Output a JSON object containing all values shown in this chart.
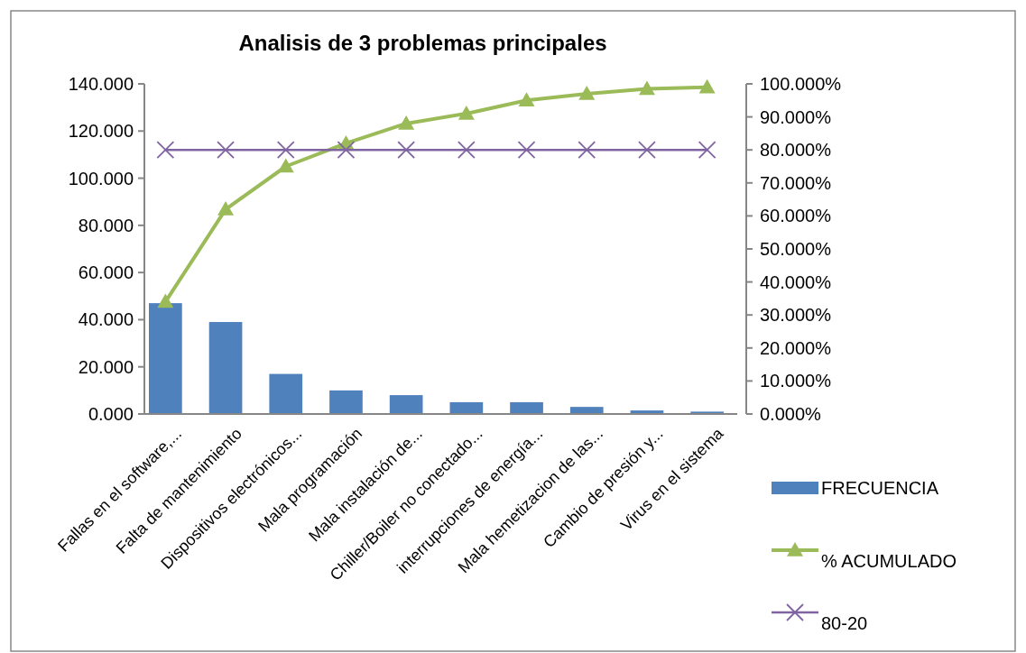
{
  "chart_data": {
    "type": "bar",
    "title": "Analisis de 3 problemas principales",
    "categories": [
      "Fallas en el software,...",
      "Falta de mantenimiento",
      "Dispositivos electrónicos...",
      "Mala programación",
      "Mala instalación de...",
      "Chiller/Boiler no conectado...",
      "interrupciones de energía...",
      "Mala hemetizacion de las...",
      "Cambio de presión y...",
      "Virus en el sistema"
    ],
    "series": [
      {
        "name": "FRECUENCIA",
        "color": "#4f81bd",
        "values": [
          47,
          39,
          17,
          10,
          8,
          5,
          5,
          3,
          1.5,
          1
        ]
      },
      {
        "name": "% ACUMULADO",
        "type": "line",
        "axis": "y2",
        "marker": "triangle",
        "color": "#9bbb59",
        "values": [
          34,
          62,
          75,
          82,
          88,
          91,
          95,
          97,
          98.5,
          99
        ]
      },
      {
        "name": "80-20",
        "type": "line",
        "axis": "y2",
        "marker": "cross",
        "color": "#8064a2",
        "values": [
          80,
          80,
          80,
          80,
          80,
          80,
          80,
          80,
          80,
          80
        ]
      }
    ],
    "ylim": [
      0,
      140
    ],
    "yticks": [
      {
        "value": 0,
        "label": "0.000"
      },
      {
        "value": 20,
        "label": "20.000"
      },
      {
        "value": 40,
        "label": "40.000"
      },
      {
        "value": 60,
        "label": "60.000"
      },
      {
        "value": 80,
        "label": "80.000"
      },
      {
        "value": 100,
        "label": "100.000"
      },
      {
        "value": 120,
        "label": "120.000"
      },
      {
        "value": 140,
        "label": "140.000"
      }
    ],
    "y2lim": [
      0,
      100
    ],
    "y2ticks": [
      {
        "value": 0,
        "label": "0.000%"
      },
      {
        "value": 10,
        "label": "10.000%"
      },
      {
        "value": 20,
        "label": "20.000%"
      },
      {
        "value": 30,
        "label": "30.000%"
      },
      {
        "value": 40,
        "label": "40.000%"
      },
      {
        "value": 50,
        "label": "50.000%"
      },
      {
        "value": 60,
        "label": "60.000%"
      },
      {
        "value": 70,
        "label": "70.000%"
      },
      {
        "value": 80,
        "label": "80.000%"
      },
      {
        "value": 90,
        "label": "90.000%"
      },
      {
        "value": 100,
        "label": "100.000%"
      }
    ],
    "legend": "right",
    "grid": false
  }
}
